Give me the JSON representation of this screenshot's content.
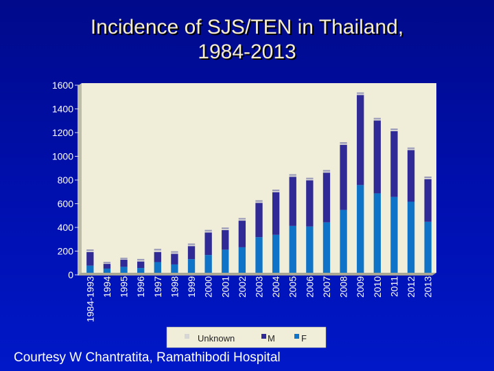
{
  "title_line1": "Incidence of SJS/TEN in Thailand,",
  "title_line2": "1984-2013",
  "footer": "Courtesy W Chantratita, Ramathibodi Hospital",
  "colors": {
    "F": "#0f74c8",
    "M": "#302a96",
    "Unknown": "#d6d6d6",
    "plot_bg": "#f0eed8"
  },
  "chart_data": {
    "type": "bar",
    "stacked": true,
    "title": "Incidence of SJS/TEN in Thailand, 1984-2013",
    "categories": [
      "1984-1993",
      "1994",
      "1995",
      "1996",
      "1997",
      "1998",
      "1999",
      "2000",
      "2001",
      "2002",
      "2003",
      "2004",
      "2005",
      "2006",
      "2007",
      "2008",
      "2009",
      "2010",
      "2011",
      "2012",
      "2013"
    ],
    "series": [
      {
        "name": "F",
        "values": [
          60,
          35,
          50,
          40,
          90,
          70,
          115,
          150,
          195,
          215,
          300,
          320,
          395,
          390,
          425,
          530,
          740,
          670,
          640,
          600,
          430
        ]
      },
      {
        "name": "M",
        "values": [
          115,
          40,
          60,
          55,
          85,
          90,
          110,
          190,
          165,
          225,
          290,
          360,
          415,
          390,
          420,
          550,
          760,
          615,
          555,
          435,
          360
        ]
      },
      {
        "name": "Unknown",
        "values": [
          10,
          5,
          5,
          10,
          15,
          10,
          10,
          10,
          10,
          10,
          10,
          10,
          10,
          10,
          10,
          10,
          10,
          10,
          10,
          10,
          10
        ]
      }
    ],
    "legend_labels": [
      "Unknown",
      "M",
      "F"
    ],
    "legend_position": "bottom",
    "ylim": [
      0,
      1600
    ],
    "yticks": [
      0,
      200,
      400,
      600,
      800,
      1000,
      1200,
      1400,
      1600
    ]
  }
}
